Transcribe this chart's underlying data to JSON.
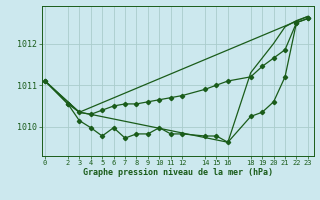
{
  "xlabel": "Graphe pression niveau de la mer (hPa)",
  "bg_color": "#cce8ee",
  "grid_color": "#aacccc",
  "line_color": "#1a5c1a",
  "tick_color": "#1a5c1a",
  "label_color": "#1a5c1a",
  "ylim": [
    1009.3,
    1012.9
  ],
  "yticks": [
    1010,
    1011,
    1012
  ],
  "xticks": [
    0,
    2,
    3,
    4,
    5,
    6,
    7,
    8,
    9,
    10,
    11,
    12,
    14,
    15,
    16,
    18,
    19,
    20,
    21,
    22,
    23
  ],
  "xlim": [
    -0.3,
    23.5
  ],
  "line1_x": [
    0,
    2,
    3,
    4,
    5,
    6,
    7,
    8,
    9,
    10,
    11,
    12,
    14,
    15,
    16,
    18,
    19,
    20,
    21,
    22,
    23
  ],
  "line1_y": [
    1011.1,
    1010.55,
    1010.15,
    1009.98,
    1009.78,
    1009.98,
    1009.73,
    1009.83,
    1009.83,
    1009.98,
    1009.83,
    1009.83,
    1009.78,
    1009.78,
    1009.63,
    1010.25,
    1010.35,
    1010.6,
    1011.2,
    1012.5,
    1012.6
  ],
  "line2_x": [
    0,
    2,
    3,
    4,
    5,
    6,
    7,
    8,
    9,
    10,
    11,
    12,
    14,
    15,
    16,
    18,
    19,
    20,
    21,
    22,
    23
  ],
  "line2_y": [
    1011.1,
    1010.55,
    1010.35,
    1010.3,
    1010.4,
    1010.5,
    1010.55,
    1010.55,
    1010.6,
    1010.65,
    1010.7,
    1010.75,
    1010.9,
    1011.0,
    1011.1,
    1011.2,
    1011.45,
    1011.65,
    1011.85,
    1012.5,
    1012.6
  ],
  "line3_x": [
    0,
    3,
    23
  ],
  "line3_y": [
    1011.1,
    1010.35,
    1012.65
  ],
  "line4_x": [
    0,
    3,
    4,
    16,
    18,
    19,
    20,
    21,
    22,
    23
  ],
  "line4_y": [
    1011.1,
    1010.35,
    1010.3,
    1009.63,
    1011.3,
    1011.65,
    1012.0,
    1012.4,
    1012.55,
    1012.65
  ]
}
